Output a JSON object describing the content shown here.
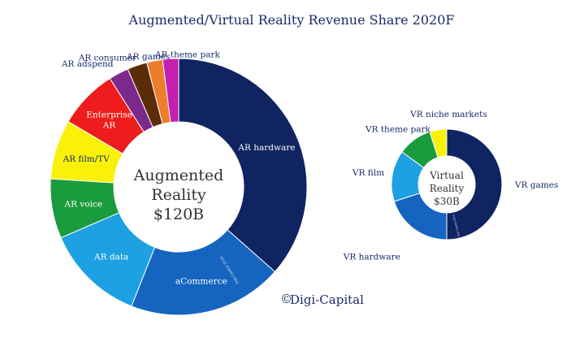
{
  "chart_data": {
    "type": "pie",
    "title": "Augmented/Virtual Reality Revenue Share 2020F",
    "brand": "Digi-Capital",
    "brand_mark": "©",
    "watermark": "Digi-Capital 2016",
    "charts": [
      {
        "name": "Augmented Reality",
        "center_lines": [
          "Augmented",
          "Reality"
        ],
        "total": "$120B",
        "categories": [
          "AR hardware",
          "aCommerce",
          "AR data",
          "AR voice",
          "AR film/TV",
          "Enterprise AR",
          "AR adspend",
          "AR consumer",
          "AR games",
          "AR theme park"
        ],
        "values": [
          36.5,
          19.5,
          12.5,
          7.5,
          7.5,
          7.5,
          2.5,
          2.5,
          2.0,
          2.0
        ],
        "colors": [
          "#0f2461",
          "#1565c0",
          "#1da1e2",
          "#1a9c3e",
          "#f9f10a",
          "#ee1c1c",
          "#7b2a8c",
          "#5a2d08",
          "#ec7d2d",
          "#c31fb0"
        ]
      },
      {
        "name": "Virtual Reality",
        "center_lines": [
          "Virtual",
          "Reality"
        ],
        "total": "$30B",
        "categories": [
          "VR games",
          "VR hardware",
          "VR film",
          "VR theme park",
          "VR niche markets"
        ],
        "values": [
          50,
          20,
          15,
          10,
          5
        ],
        "colors": [
          "#0f2461",
          "#1565c0",
          "#1da1e2",
          "#1a9c3e",
          "#f9f10a"
        ]
      }
    ]
  }
}
